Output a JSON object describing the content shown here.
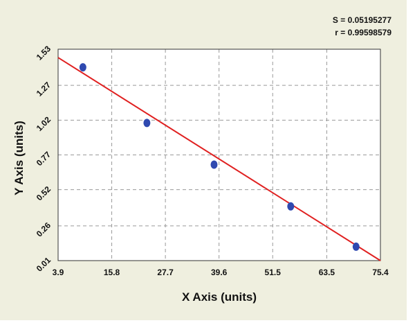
{
  "stats": {
    "s_label": "S = 0.05195277",
    "r_label": "r = 0.99598579"
  },
  "chart_data": {
    "type": "scatter",
    "title": "",
    "xlabel": "X Axis (units)",
    "ylabel": "Y Axis (units)",
    "xlim": [
      3.9,
      75.4
    ],
    "ylim": [
      0.01,
      1.53
    ],
    "x_ticks": [
      "3.9",
      "15.8",
      "27.7",
      "39.6",
      "51.5",
      "63.5",
      "75.4"
    ],
    "y_ticks": [
      "0.01",
      "0.26",
      "0.52",
      "0.77",
      "1.02",
      "1.27",
      "1.53"
    ],
    "grid": true,
    "series": [
      {
        "points": [
          {
            "x": 9.4,
            "y": 1.4
          },
          {
            "x": 23.6,
            "y": 1.0
          },
          {
            "x": 38.5,
            "y": 0.7
          },
          {
            "x": 55.5,
            "y": 0.4
          },
          {
            "x": 70.0,
            "y": 0.11
          }
        ]
      }
    ],
    "fit_line": {
      "x": [
        3.9,
        75.4
      ],
      "y": [
        1.47,
        0.01
      ]
    },
    "colors": {
      "points": "#2f49b0",
      "fit_line": "#e02020",
      "grid": "#999999",
      "background": "#efefdf",
      "plot_area": "#ffffff"
    }
  }
}
